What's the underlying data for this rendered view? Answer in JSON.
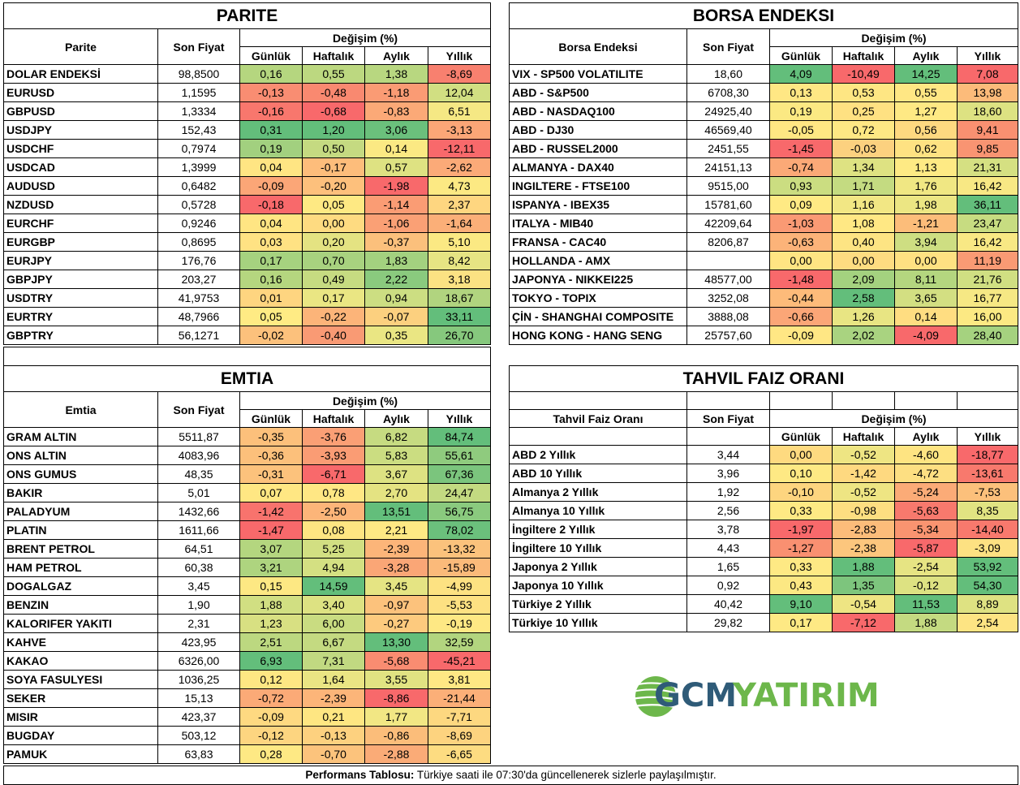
{
  "colors": {
    "green": "#63BE7B",
    "yellow": "#FFEB84",
    "red": "#F8696B"
  },
  "parite": {
    "title": "PARITE",
    "col_name": "Parite",
    "col_price": "Son Fiyat",
    "col_change": "Değişim (%)",
    "periods": [
      "Günlük",
      "Haftalık",
      "Aylık",
      "Yıllık"
    ],
    "rows": [
      {
        "name": "DOLAR ENDEKSİ",
        "price": "98,8500",
        "vals": [
          "0,16",
          "0,55",
          "1,38",
          "-8,69"
        ],
        "colors": [
          "#B5D67F",
          "#BCD880",
          "#B8D780",
          "#F8806F"
        ]
      },
      {
        "name": "EURUSD",
        "price": "1,1595",
        "vals": [
          "-0,13",
          "-0,48",
          "-1,18",
          "12,04"
        ],
        "colors": [
          "#F98D72",
          "#F98970",
          "#FA9B74",
          "#D1DF82"
        ]
      },
      {
        "name": "GBPUSD",
        "price": "1,3334",
        "vals": [
          "-0,16",
          "-0,68",
          "-0,83",
          "6,51"
        ],
        "colors": [
          "#F8776D",
          "#F8696B",
          "#FBA977",
          "#F5E884"
        ]
      },
      {
        "name": "USDJPY",
        "price": "152,43",
        "vals": [
          "0,31",
          "1,20",
          "3,06",
          "-3,13"
        ],
        "colors": [
          "#63BE7B",
          "#63BE7B",
          "#6BC07C",
          "#FBA677"
        ]
      },
      {
        "name": "USDCHF",
        "price": "0,7974",
        "vals": [
          "0,19",
          "0,50",
          "0,14",
          "-12,11"
        ],
        "colors": [
          "#A2D07F",
          "#C5DA81",
          "#FBE983",
          "#F8696B"
        ]
      },
      {
        "name": "USDCAD",
        "price": "1,3999",
        "vals": [
          "0,04",
          "-0,17",
          "0,57",
          "-2,62"
        ],
        "colors": [
          "#FFE583",
          "#FDBD7B",
          "#DEE282",
          "#FBAA78"
        ]
      },
      {
        "name": "AUDUSD",
        "price": "0,6482",
        "vals": [
          "-0,09",
          "-0,20",
          "-1,98",
          "4,73"
        ],
        "colors": [
          "#FBA677",
          "#FDC07C",
          "#F8696B",
          "#FCE983"
        ]
      },
      {
        "name": "NZDUSD",
        "price": "0,5728",
        "vals": [
          "-0,18",
          "0,05",
          "-1,14",
          "2,37"
        ],
        "colors": [
          "#F8696B",
          "#FEE983",
          "#FA9C74",
          "#FED680"
        ]
      },
      {
        "name": "EURCHF",
        "price": "0,9246",
        "vals": [
          "0,04",
          "0,00",
          "-1,06",
          "-1,64"
        ],
        "colors": [
          "#FFE583",
          "#FEDB81",
          "#FAA075",
          "#FBAF78"
        ]
      },
      {
        "name": "EURGBP",
        "price": "0,8695",
        "vals": [
          "0,03",
          "0,20",
          "-0,37",
          "5,10"
        ],
        "colors": [
          "#FFE283",
          "#E4E382",
          "#FBC07C",
          "#FBE983"
        ]
      },
      {
        "name": "EURJPY",
        "price": "176,76",
        "vals": [
          "0,17",
          "0,70",
          "1,83",
          "8,42"
        ],
        "colors": [
          "#A6D27F",
          "#A8D27F",
          "#A3D17F",
          "#E6E483"
        ]
      },
      {
        "name": "GBPJPY",
        "price": "203,27",
        "vals": [
          "0,16",
          "0,49",
          "2,22",
          "3,18"
        ],
        "colors": [
          "#B5D67F",
          "#C6DB81",
          "#8ACA7E",
          "#FBE283"
        ]
      },
      {
        "name": "USDTRY",
        "price": "41,9753",
        "vals": [
          "0,01",
          "0,17",
          "0,94",
          "18,67"
        ],
        "colors": [
          "#FED580",
          "#EAE683",
          "#CCDE82",
          "#B1D47F"
        ]
      },
      {
        "name": "EURTRY",
        "price": "48,7966",
        "vals": [
          "0,05",
          "-0,22",
          "-0,07",
          "33,11"
        ],
        "colors": [
          "#FFEB84",
          "#FCB479",
          "#FCD07F",
          "#63BE7B"
        ]
      },
      {
        "name": "GBPTRY",
        "price": "56,1271",
        "vals": [
          "-0,02",
          "-0,40",
          "0,35",
          "26,70"
        ],
        "colors": [
          "#FCC17C",
          "#F99A74",
          "#EAE683",
          "#86C87D"
        ]
      }
    ]
  },
  "borsa": {
    "title": "BORSA ENDEKSI",
    "col_name": "Borsa Endeksi",
    "col_price": "Son Fiyat",
    "col_change": "Değişim (%)",
    "periods": [
      "Günlük",
      "Haftalık",
      "Aylık",
      "Yıllık"
    ],
    "rows": [
      {
        "name": "VIX  - SP500 VOLATILITE",
        "price": "18,60",
        "vals": [
          "4,09",
          "-10,49",
          "14,25",
          "7,08"
        ],
        "colors": [
          "#63BE7B",
          "#F8696B",
          "#63BE7B",
          "#F8696B"
        ]
      },
      {
        "name": "ABD - S&P500",
        "price": "6708,30",
        "vals": [
          "0,13",
          "0,53",
          "0,55",
          "13,98"
        ],
        "colors": [
          "#FFE784",
          "#FEE683",
          "#FFE784",
          "#FCBB7A"
        ]
      },
      {
        "name": "ABD - NASDAQ100",
        "price": "24925,40",
        "vals": [
          "0,19",
          "0,25",
          "1,27",
          "18,60"
        ],
        "colors": [
          "#FBE983",
          "#FEE182",
          "#FEE984",
          "#DDE282"
        ]
      },
      {
        "name": "ABD - DJ30",
        "price": "46569,40",
        "vals": [
          "-0,05",
          "0,72",
          "0,56",
          "9,41"
        ],
        "colors": [
          "#FFE783",
          "#FEE884",
          "#FED980",
          "#F99071"
        ]
      },
      {
        "name": "ABD - RUSSEL2000",
        "price": "2451,55",
        "vals": [
          "-1,45",
          "-0,03",
          "0,62",
          "9,85"
        ],
        "colors": [
          "#F8696B",
          "#FCD17F",
          "#FEE282",
          "#F99472"
        ]
      },
      {
        "name": "ALMANYA - DAX40",
        "price": "24151,13",
        "vals": [
          "-0,74",
          "1,34",
          "1,13",
          "21,31"
        ],
        "colors": [
          "#FBA977",
          "#DEE282",
          "#FEEA84",
          "#D5E082"
        ]
      },
      {
        "name": "INGILTERE - FTSE100",
        "price": "9515,00",
        "vals": [
          "0,93",
          "1,71",
          "1,76",
          "16,42"
        ],
        "colors": [
          "#CBDD81",
          "#C4DB81",
          "#F0E783",
          "#F8E884"
        ]
      },
      {
        "name": "ISPANYA - IBEX35",
        "price": "15781,60",
        "vals": [
          "0,09",
          "1,16",
          "1,98",
          "36,11"
        ],
        "colors": [
          "#FFEA84",
          "#F2E784",
          "#ECE683",
          "#63BE7B"
        ]
      },
      {
        "name": "ITALYA - MIB40",
        "price": "42209,64",
        "vals": [
          "-1,03",
          "1,08",
          "-1,21",
          "23,47"
        ],
        "colors": [
          "#FA9A74",
          "#FFE884",
          "#FCBD7A",
          "#C7DC81"
        ]
      },
      {
        "name": "FRANSA - CAC40",
        "price": "8206,87",
        "vals": [
          "-0,63",
          "0,40",
          "3,94",
          "16,42"
        ],
        "colors": [
          "#FCB379",
          "#FDE483",
          "#CEDE82",
          "#F8E884"
        ]
      },
      {
        "name": "HOLLANDA - AMX",
        "price": "",
        "vals": [
          "0,00",
          "0,00",
          "0,00",
          "11,19"
        ],
        "colors": [
          "#FFE583",
          "#FEDC81",
          "#FEE182",
          "#F99A74"
        ]
      },
      {
        "name": "JAPONYA - NIKKEI225",
        "price": "48577,00",
        "vals": [
          "-1,48",
          "2,09",
          "8,11",
          "21,76"
        ],
        "colors": [
          "#F8696B",
          "#A4D27F",
          "#B4D67F",
          "#D0DF82"
        ]
      },
      {
        "name": "TOKYO - TOPIX",
        "price": "3252,08",
        "vals": [
          "-0,44",
          "2,58",
          "3,65",
          "16,77"
        ],
        "colors": [
          "#FDBB7A",
          "#63BE7B",
          "#D3DF82",
          "#F6E884"
        ]
      },
      {
        "name": "ÇİN - SHANGHAI COMPOSITE",
        "price": "3888,08",
        "vals": [
          "-0,66",
          "1,26",
          "0,14",
          "16,00"
        ],
        "colors": [
          "#FBA677",
          "#E8E583",
          "#FFDD81",
          "#FCE983"
        ]
      },
      {
        "name": "HONG KONG - HANG SENG",
        "price": "25757,60",
        "vals": [
          "-0,09",
          "2,02",
          "-4,09",
          "28,40"
        ],
        "colors": [
          "#FFE784",
          "#A9D380",
          "#F8696B",
          "#A5D27F"
        ]
      }
    ]
  },
  "emtia": {
    "title": "EMTIA",
    "col_name": "Emtia",
    "col_price": "Son Fiyat",
    "col_change": "Değişim (%)",
    "periods": [
      "Günlük",
      "Haftalık",
      "Aylık",
      "Yıllık"
    ],
    "rows": [
      {
        "name": "GRAM ALTIN",
        "price": "5511,87",
        "vals": [
          "-0,35",
          "-3,76",
          "6,82",
          "84,74"
        ],
        "colors": [
          "#FCC07B",
          "#FA9F75",
          "#C6DB81",
          "#63BE7B"
        ]
      },
      {
        "name": "ONS ALTIN",
        "price": "4083,96",
        "vals": [
          "-0,36",
          "-3,93",
          "5,83",
          "55,61"
        ],
        "colors": [
          "#FCC07B",
          "#FA9C74",
          "#CBDD81",
          "#8FCB7E"
        ]
      },
      {
        "name": "ONS GUMUS",
        "price": "48,35",
        "vals": [
          "-0,31",
          "-6,71",
          "3,67",
          "67,36"
        ],
        "colors": [
          "#FCC27C",
          "#F8696B",
          "#DDE282",
          "#7BC57D"
        ]
      },
      {
        "name": "BAKIR",
        "price": "5,01",
        "vals": [
          "0,07",
          "0,78",
          "2,70",
          "24,47"
        ],
        "colors": [
          "#FFE783",
          "#FFE784",
          "#E4E382",
          "#C3DA81"
        ]
      },
      {
        "name": "PALADYUM",
        "price": "1432,66",
        "vals": [
          "-1,42",
          "-2,50",
          "13,51",
          "56,75"
        ],
        "colors": [
          "#F8736D",
          "#FCB579",
          "#63BE7B",
          "#8ACA7E"
        ]
      },
      {
        "name": "PLATIN",
        "price": "1611,66",
        "vals": [
          "-1,47",
          "0,08",
          "2,21",
          "78,02"
        ],
        "colors": [
          "#F8696B",
          "#FEE582",
          "#FEE984",
          "#6BC07C"
        ]
      },
      {
        "name": "BRENT PETROL",
        "price": "64,51",
        "vals": [
          "3,07",
          "5,25",
          "-2,39",
          "-13,32"
        ],
        "colors": [
          "#B4D67F",
          "#D2DF82",
          "#FCB579",
          "#FBC27C"
        ]
      },
      {
        "name": "HAM PETROL",
        "price": "60,38",
        "vals": [
          "3,21",
          "4,94",
          "-3,28",
          "-15,89"
        ],
        "colors": [
          "#AED47F",
          "#D4E082",
          "#FAA676",
          "#FBBA7A"
        ]
      },
      {
        "name": "DOGALGAZ",
        "price": "3,45",
        "vals": [
          "0,15",
          "14,59",
          "3,45",
          "-4,99"
        ],
        "colors": [
          "#FDE883",
          "#63BE7B",
          "#E5E483",
          "#FDE282"
        ]
      },
      {
        "name": "BENZIN",
        "price": "1,90",
        "vals": [
          "1,88",
          "3,40",
          "-0,97",
          "-5,53"
        ],
        "colors": [
          "#D1DF82",
          "#DDE282",
          "#FCC27C",
          "#FDE182"
        ]
      },
      {
        "name": "KALORIFER YAKITI",
        "price": "2,31",
        "vals": [
          "1,23",
          "6,00",
          "-0,27",
          "-0,19"
        ],
        "colors": [
          "#D8E082",
          "#C9DC81",
          "#FDCA7E",
          "#FEE884"
        ]
      },
      {
        "name": "KAHVE",
        "price": "423,95",
        "vals": [
          "2,51",
          "6,67",
          "13,30",
          "32,59"
        ],
        "colors": [
          "#BCD880",
          "#C4DA81",
          "#63BE7B",
          "#B2D57F"
        ]
      },
      {
        "name": "KAKAO",
        "price": "6326,00",
        "vals": [
          "6,93",
          "7,31",
          "-5,68",
          "-45,21"
        ],
        "colors": [
          "#63BE7B",
          "#C1D981",
          "#F98C71",
          "#F8696B"
        ]
      },
      {
        "name": "SOYA FASULYESI",
        "price": "1036,25",
        "vals": [
          "0,12",
          "1,64",
          "3,55",
          "3,81"
        ],
        "colors": [
          "#FEE783",
          "#EAE583",
          "#E1E382",
          "#FEE884"
        ]
      },
      {
        "name": "SEKER",
        "price": "15,13",
        "vals": [
          "-0,72",
          "-2,39",
          "-8,86",
          "-21,44"
        ],
        "colors": [
          "#FBAA77",
          "#FCB579",
          "#F8696B",
          "#FBAF78"
        ]
      },
      {
        "name": "MISIR",
        "price": "423,37",
        "vals": [
          "-0,09",
          "0,21",
          "1,77",
          "-7,71"
        ],
        "colors": [
          "#FED981",
          "#FEE682",
          "#F2E784",
          "#FDD880"
        ]
      },
      {
        "name": "BUGDAY",
        "price": "503,12",
        "vals": [
          "-0,12",
          "-0,13",
          "-0,86",
          "-8,69"
        ],
        "colors": [
          "#FDD580",
          "#FDD17F",
          "#FBBD7A",
          "#FDD37F"
        ]
      },
      {
        "name": "PAMUK",
        "price": "63,83",
        "vals": [
          "0,28",
          "-0,70",
          "-2,88",
          "-6,65"
        ],
        "colors": [
          "#FEE984",
          "#FCC37C",
          "#FAAB77",
          "#FDDC81"
        ]
      }
    ]
  },
  "tahvil": {
    "title": "TAHVIL FAIZ ORANI",
    "col_name": "Tahvil Faiz Oranı",
    "col_price": "Son Fiyat",
    "col_change": "Değişim (%)",
    "periods": [
      "Günlük",
      "Haftalık",
      "Aylık",
      "Yıllık"
    ],
    "rows": [
      {
        "name": "ABD 2 Yıllık",
        "price": "3,44",
        "vals": [
          "0,00",
          "-0,52",
          "-4,60",
          "-18,77"
        ],
        "colors": [
          "#FEDA80",
          "#EEE583",
          "#FEE482",
          "#F8696B"
        ]
      },
      {
        "name": "ABD 10 Yıllık",
        "price": "3,96",
        "vals": [
          "0,10",
          "-1,42",
          "-4,72",
          "-13,61"
        ],
        "colors": [
          "#FEE984",
          "#FED980",
          "#FDDF82",
          "#F8796D"
        ]
      },
      {
        "name": "Almanya 2 Yıllık",
        "price": "1,92",
        "vals": [
          "-0,10",
          "-0,52",
          "-5,24",
          "-7,53"
        ],
        "colors": [
          "#FDD57F",
          "#EEE583",
          "#FBAB77",
          "#FCC07B"
        ]
      },
      {
        "name": "Almanya 10 Yıllık",
        "price": "2,56",
        "vals": [
          "0,33",
          "-0,98",
          "-5,63",
          "8,35"
        ],
        "colors": [
          "#FEE984",
          "#FDDE81",
          "#F8796D",
          "#E1E382"
        ]
      },
      {
        "name": "İngiltere 2 Yıllık",
        "price": "3,78",
        "vals": [
          "-1,97",
          "-2,83",
          "-5,34",
          "-14,40"
        ],
        "colors": [
          "#F8696B",
          "#FCBC7A",
          "#F99470",
          "#F8796D"
        ]
      },
      {
        "name": "İngiltere 10 Yıllık",
        "price": "4,43",
        "vals": [
          "-1,27",
          "-2,38",
          "-5,87",
          "-3,09"
        ],
        "colors": [
          "#F99071",
          "#FCC67D",
          "#F8696B",
          "#FDE182"
        ]
      },
      {
        "name": "Japonya 2 Yıllık",
        "price": "1,65",
        "vals": [
          "0,33",
          "1,88",
          "-2,54",
          "53,92"
        ],
        "colors": [
          "#FEE984",
          "#63BE7B",
          "#E6E483",
          "#63BE7B"
        ]
      },
      {
        "name": "Japonya 10 Yıllık",
        "price": "0,92",
        "vals": [
          "0,43",
          "1,35",
          "-0,12",
          "54,30"
        ],
        "colors": [
          "#FCE883",
          "#7DC57D",
          "#DDE282",
          "#63BE7B"
        ]
      },
      {
        "name": "Türkiye 2 Yıllık",
        "price": "40,42",
        "vals": [
          "9,10",
          "-0,54",
          "11,53",
          "8,89"
        ],
        "colors": [
          "#63BE7B",
          "#EEE583",
          "#63BE7B",
          "#DEE282"
        ]
      },
      {
        "name": "Türkiye 10 Yıllık",
        "price": "29,82",
        "vals": [
          "0,17",
          "-7,12",
          "1,88",
          "2,54"
        ],
        "colors": [
          "#FEE984",
          "#F8696B",
          "#C4DA81",
          "#FDE483"
        ]
      }
    ]
  },
  "logo": {
    "text_dark": "GCM",
    "text_green": "YATIRIM",
    "dark_color": "#2F5B78",
    "green_color": "#6DB74B"
  },
  "footer": {
    "bold": "Performans Tablosu:",
    "text": " Türkiye saati ile 07:30'da güncellenerek sizlerle paylaşılmıştır."
  }
}
